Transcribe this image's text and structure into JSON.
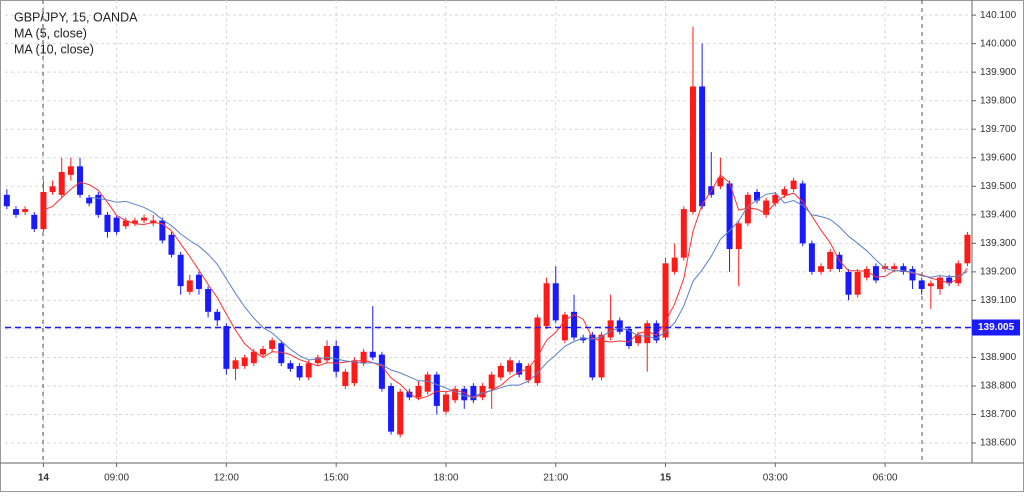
{
  "chart_data": {
    "type": "candlestick",
    "title": "GBP/JPY, 15, OANDA",
    "up_color": "#ff1a1a",
    "down_color": "#1a1aff",
    "indicators": [
      {
        "name": "MA (5, close)",
        "period": 5,
        "color": "#ff3030"
      },
      {
        "name": "MA (10, close)",
        "period": 10,
        "color": "#5b80c8"
      }
    ],
    "xlim": [
      -0.2,
      105.5
    ],
    "xticks": [
      {
        "value": 4,
        "label": "14"
      },
      {
        "value": 12,
        "label": "09:00"
      },
      {
        "value": 24,
        "label": "12:00"
      },
      {
        "value": 36,
        "label": "15:00"
      },
      {
        "value": 48,
        "label": "18:00"
      },
      {
        "value": 60,
        "label": "21:00"
      },
      {
        "value": 72,
        "label": "15"
      },
      {
        "value": 84,
        "label": "03:00"
      },
      {
        "value": 96,
        "label": "06:00"
      }
    ],
    "ylim": [
      138.53,
      140.153
    ],
    "yticks": [
      {
        "value": 138.6,
        "label": "138.600"
      },
      {
        "value": 138.7,
        "label": "138.700"
      },
      {
        "value": 138.8,
        "label": "138.800"
      },
      {
        "value": 138.9,
        "label": "138.900"
      },
      {
        "value": 139.0,
        "label": "139.000"
      },
      {
        "value": 139.1,
        "label": "139.100"
      },
      {
        "value": 139.2,
        "label": "139.200"
      },
      {
        "value": 139.3,
        "label": "139.300"
      },
      {
        "value": 139.4,
        "label": "139.400"
      },
      {
        "value": 139.5,
        "label": "139.500"
      },
      {
        "value": 139.6,
        "label": "139.600"
      },
      {
        "value": 139.7,
        "label": "139.700"
      },
      {
        "value": 139.8,
        "label": "139.800"
      },
      {
        "value": 139.9,
        "label": "139.900"
      },
      {
        "value": 140.0,
        "label": "140.000"
      },
      {
        "value": 140.1,
        "label": "140.100"
      }
    ],
    "grid": true,
    "price_line": 139.005,
    "ohlc": [
      [
        139.47,
        139.49,
        139.42,
        139.43
      ],
      [
        139.42,
        139.43,
        139.39,
        139.4
      ],
      [
        139.41,
        139.43,
        139.4,
        139.42
      ],
      [
        139.4,
        139.41,
        139.34,
        139.35
      ],
      [
        139.35,
        139.52,
        139.34,
        139.48
      ],
      [
        139.48,
        139.52,
        139.47,
        139.5
      ],
      [
        139.47,
        139.6,
        139.46,
        139.55
      ],
      [
        139.54,
        139.6,
        139.52,
        139.57
      ],
      [
        139.57,
        139.6,
        139.46,
        139.47
      ],
      [
        139.46,
        139.47,
        139.43,
        139.44
      ],
      [
        139.47,
        139.48,
        139.39,
        139.4
      ],
      [
        139.4,
        139.41,
        139.32,
        139.34
      ],
      [
        139.39,
        139.4,
        139.33,
        139.34
      ],
      [
        139.36,
        139.39,
        139.35,
        139.38
      ],
      [
        139.37,
        139.39,
        139.36,
        139.38
      ],
      [
        139.38,
        139.4,
        139.37,
        139.39
      ],
      [
        139.37,
        139.4,
        139.36,
        139.38
      ],
      [
        139.38,
        139.39,
        139.3,
        139.31
      ],
      [
        139.33,
        139.34,
        139.25,
        139.26
      ],
      [
        139.26,
        139.27,
        139.12,
        139.15
      ],
      [
        139.13,
        139.19,
        139.12,
        139.17
      ],
      [
        139.19,
        139.2,
        139.12,
        139.14
      ],
      [
        139.14,
        139.15,
        139.04,
        139.06
      ],
      [
        139.06,
        139.07,
        139.01,
        139.03
      ],
      [
        139.01,
        139.02,
        138.84,
        138.86
      ],
      [
        138.86,
        138.9,
        138.82,
        138.89
      ],
      [
        138.87,
        138.91,
        138.86,
        138.9
      ],
      [
        138.88,
        138.93,
        138.87,
        138.92
      ],
      [
        138.91,
        138.94,
        138.9,
        138.93
      ],
      [
        138.93,
        138.97,
        138.92,
        138.96
      ],
      [
        138.95,
        138.96,
        138.87,
        138.88
      ],
      [
        138.88,
        138.89,
        138.85,
        138.86
      ],
      [
        138.87,
        138.88,
        138.82,
        138.83
      ],
      [
        138.83,
        138.89,
        138.82,
        138.88
      ],
      [
        138.88,
        138.91,
        138.87,
        138.9
      ],
      [
        138.89,
        138.96,
        138.88,
        138.94
      ],
      [
        138.94,
        138.96,
        138.83,
        138.85
      ],
      [
        138.8,
        138.86,
        138.79,
        138.85
      ],
      [
        138.81,
        138.9,
        138.8,
        138.89
      ],
      [
        138.88,
        138.93,
        138.87,
        138.92
      ],
      [
        138.92,
        139.08,
        138.89,
        138.9
      ],
      [
        138.91,
        138.92,
        138.78,
        138.79
      ],
      [
        138.8,
        138.81,
        138.63,
        138.64
      ],
      [
        138.63,
        138.79,
        138.62,
        138.78
      ],
      [
        138.78,
        138.79,
        138.75,
        138.76
      ],
      [
        138.76,
        138.82,
        138.75,
        138.8
      ],
      [
        138.78,
        138.85,
        138.77,
        138.84
      ],
      [
        138.84,
        138.85,
        138.7,
        138.73
      ],
      [
        138.71,
        138.78,
        138.7,
        138.77
      ],
      [
        138.75,
        138.8,
        138.74,
        138.79
      ],
      [
        138.79,
        138.8,
        138.72,
        138.75
      ],
      [
        138.8,
        138.81,
        138.74,
        138.75
      ],
      [
        138.76,
        138.81,
        138.75,
        138.8
      ],
      [
        138.79,
        138.85,
        138.72,
        138.84
      ],
      [
        138.83,
        138.88,
        138.82,
        138.87
      ],
      [
        138.85,
        138.9,
        138.84,
        138.89
      ],
      [
        138.88,
        138.89,
        138.83,
        138.84
      ],
      [
        138.82,
        138.88,
        138.81,
        138.87
      ],
      [
        138.81,
        139.05,
        138.8,
        139.04
      ],
      [
        139.01,
        139.18,
        139.0,
        139.16
      ],
      [
        139.16,
        139.22,
        139.02,
        139.03
      ],
      [
        138.96,
        139.06,
        138.95,
        139.05
      ],
      [
        139.06,
        139.12,
        138.96,
        138.97
      ],
      [
        138.97,
        138.98,
        138.95,
        138.96
      ],
      [
        138.98,
        138.99,
        138.82,
        138.83
      ],
      [
        138.83,
        138.99,
        138.82,
        138.98
      ],
      [
        138.97,
        139.12,
        138.96,
        139.03
      ],
      [
        139.03,
        139.04,
        138.98,
        138.99
      ],
      [
        139.0,
        139.01,
        138.93,
        138.94
      ],
      [
        138.95,
        138.99,
        138.94,
        138.98
      ],
      [
        138.95,
        139.03,
        138.85,
        139.02
      ],
      [
        139.02,
        139.03,
        138.95,
        138.96
      ],
      [
        138.97,
        139.25,
        138.96,
        139.23
      ],
      [
        139.2,
        139.3,
        139.19,
        139.25
      ],
      [
        139.25,
        139.43,
        139.24,
        139.42
      ],
      [
        139.41,
        140.06,
        139.4,
        139.85
      ],
      [
        139.85,
        140.0,
        139.42,
        139.43
      ],
      [
        139.5,
        139.62,
        139.46,
        139.47
      ],
      [
        139.5,
        139.6,
        139.49,
        139.53
      ],
      [
        139.51,
        139.52,
        139.2,
        139.28
      ],
      [
        139.28,
        139.38,
        139.15,
        139.37
      ],
      [
        139.37,
        139.48,
        139.36,
        139.47
      ],
      [
        139.48,
        139.49,
        139.44,
        139.45
      ],
      [
        139.4,
        139.46,
        139.39,
        139.45
      ],
      [
        139.44,
        139.48,
        139.43,
        139.47
      ],
      [
        139.47,
        139.5,
        139.46,
        139.49
      ],
      [
        139.49,
        139.53,
        139.48,
        139.52
      ],
      [
        139.51,
        139.52,
        139.29,
        139.3
      ],
      [
        139.3,
        139.31,
        139.19,
        139.2
      ],
      [
        139.2,
        139.23,
        139.19,
        139.22
      ],
      [
        139.21,
        139.28,
        139.2,
        139.27
      ],
      [
        139.26,
        139.27,
        139.2,
        139.21
      ],
      [
        139.2,
        139.21,
        139.1,
        139.12
      ],
      [
        139.12,
        139.21,
        139.11,
        139.2
      ],
      [
        139.18,
        139.22,
        139.17,
        139.21
      ],
      [
        139.22,
        139.23,
        139.16,
        139.17
      ],
      [
        139.21,
        139.23,
        139.2,
        139.22
      ],
      [
        139.21,
        139.23,
        139.2,
        139.22
      ],
      [
        139.22,
        139.23,
        139.19,
        139.2
      ],
      [
        139.21,
        139.22,
        139.14,
        139.17
      ],
      [
        139.17,
        139.18,
        139.12,
        139.14
      ],
      [
        139.15,
        139.17,
        139.07,
        139.16
      ],
      [
        139.14,
        139.19,
        139.12,
        139.18
      ],
      [
        139.18,
        139.19,
        139.15,
        139.16
      ],
      [
        139.16,
        139.24,
        139.15,
        139.23
      ],
      [
        139.23,
        139.34,
        139.22,
        139.33
      ]
    ]
  }
}
